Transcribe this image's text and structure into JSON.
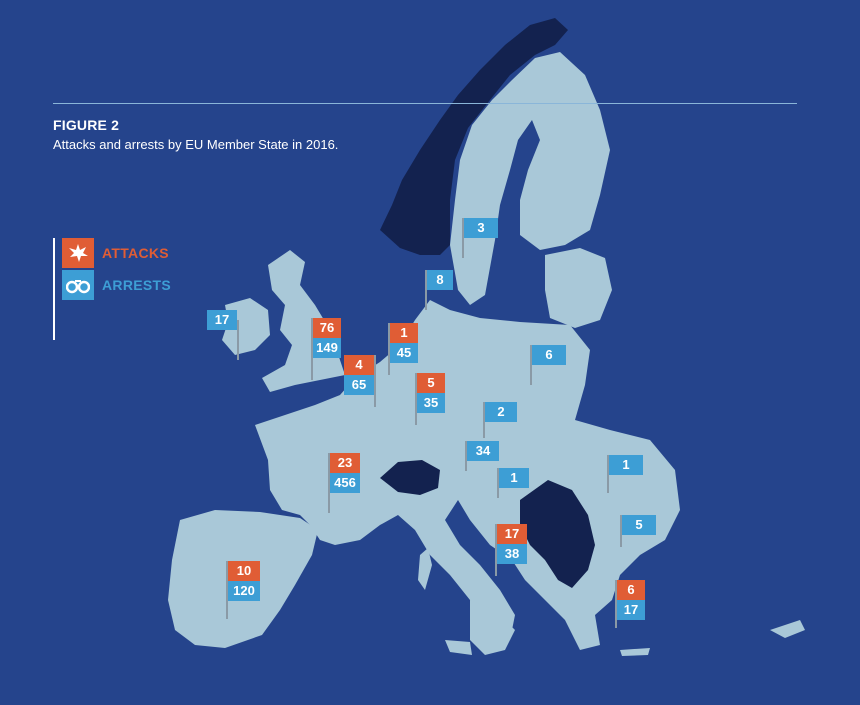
{
  "figure": {
    "label": "FIGURE 2",
    "subtitle": "Attacks and arrests by EU Member State in 2016."
  },
  "legend": {
    "attacks": {
      "label": "ATTACKS",
      "color": "#e05d35",
      "icon": "explosion-icon"
    },
    "arrests": {
      "label": "ARRESTS",
      "color": "#3d9ed5",
      "icon": "handcuffs-icon"
    }
  },
  "colors": {
    "sea": "#25448c",
    "eu_member": "#a9c8d8",
    "non_member": "#13224f",
    "border": "#3a5a8a"
  },
  "states": [
    {
      "id": "ireland",
      "attacks": "",
      "arrests": "17"
    },
    {
      "id": "united-kingdom",
      "attacks": "76",
      "arrests": "149"
    },
    {
      "id": "belgium",
      "attacks": "4",
      "arrests": "65"
    },
    {
      "id": "netherlands",
      "attacks": "1",
      "arrests": "45"
    },
    {
      "id": "germany",
      "attacks": "5",
      "arrests": "35"
    },
    {
      "id": "denmark",
      "attacks": "",
      "arrests": "8"
    },
    {
      "id": "sweden",
      "attacks": "",
      "arrests": "3"
    },
    {
      "id": "poland",
      "attacks": "",
      "arrests": "6"
    },
    {
      "id": "czech-republic",
      "attacks": "",
      "arrests": "2"
    },
    {
      "id": "austria",
      "attacks": "",
      "arrests": "34"
    },
    {
      "id": "hungary",
      "attacks": "",
      "arrests": "1"
    },
    {
      "id": "romania",
      "attacks": "",
      "arrests": "1"
    },
    {
      "id": "bulgaria",
      "attacks": "",
      "arrests": "5"
    },
    {
      "id": "france",
      "attacks": "23",
      "arrests": "456"
    },
    {
      "id": "spain",
      "attacks": "10",
      "arrests": "120"
    },
    {
      "id": "italy",
      "attacks": "17",
      "arrests": "38"
    },
    {
      "id": "greece",
      "attacks": "6",
      "arrests": "17"
    }
  ]
}
